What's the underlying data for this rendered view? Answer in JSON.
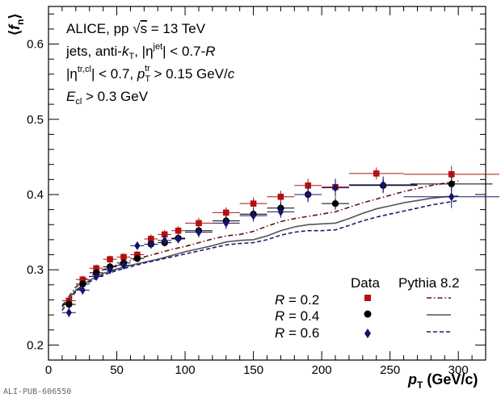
{
  "figure_id": "ALI-PUB-606550",
  "annotation": {
    "line1": {
      "pre": "ALICE, pp ",
      "sqrt": "√",
      "s": "s",
      "post": " = 13 TeV"
    },
    "line2": {
      "pre": "jets, anti-",
      "k": "k",
      "ksub": "T",
      "mid": ", |η",
      "etasup": "jet",
      "post": "| < 0.7-",
      "R": "R"
    },
    "line3": {
      "pre": "|η",
      "etasup": "tr,cl",
      "mid": "| < 0.7, ",
      "p": "p",
      "psub": "T",
      "psup": "tr",
      "post": " > 0.15 GeV/",
      "c": "c"
    },
    "line4": {
      "E": "E",
      "Esub": "cl",
      "post": " > 0.3 GeV"
    }
  },
  "legend": {
    "header_data": "Data",
    "header_mc": "Pythia 8.2",
    "entries": [
      {
        "R": "R",
        "eq": " = 0.2"
      },
      {
        "R": "R",
        "eq": " = 0.4"
      },
      {
        "R": "R",
        "eq": " = 0.6"
      }
    ]
  },
  "chart_data": {
    "type": "scatter",
    "xlabel": {
      "p": "p",
      "sub": "T",
      "unit": " (GeV/c)"
    },
    "ylabel": {
      "pre": "⟨",
      "f": "f",
      "sub": "n",
      "post": "⟩"
    },
    "xlim": [
      0,
      320
    ],
    "ylim": [
      0.18,
      0.65
    ],
    "xticks": [
      0,
      50,
      100,
      150,
      200,
      250,
      300
    ],
    "yticks": [
      0.2,
      0.3,
      0.4,
      0.5,
      0.6
    ],
    "grid": false,
    "legend_position": "bottom-right",
    "series": [
      {
        "name": "R = 0.2",
        "kind": "data",
        "marker": "square",
        "color": "#b31010",
        "points": [
          {
            "x": 15,
            "y": 0.259,
            "xerr": 5,
            "yerr": 0.006
          },
          {
            "x": 25,
            "y": 0.287,
            "xerr": 5,
            "yerr": 0.005
          },
          {
            "x": 35,
            "y": 0.302,
            "xerr": 5,
            "yerr": 0.005
          },
          {
            "x": 45,
            "y": 0.314,
            "xerr": 5,
            "yerr": 0.005
          },
          {
            "x": 55,
            "y": 0.317,
            "xerr": 5,
            "yerr": 0.005
          },
          {
            "x": 65,
            "y": 0.32,
            "xerr": 5,
            "yerr": 0.005
          },
          {
            "x": 75,
            "y": 0.341,
            "xerr": 5,
            "yerr": 0.006
          },
          {
            "x": 85,
            "y": 0.347,
            "xerr": 5,
            "yerr": 0.006
          },
          {
            "x": 95,
            "y": 0.352,
            "xerr": 5,
            "yerr": 0.006
          },
          {
            "x": 110,
            "y": 0.362,
            "xerr": 10,
            "yerr": 0.007
          },
          {
            "x": 130,
            "y": 0.376,
            "xerr": 10,
            "yerr": 0.007
          },
          {
            "x": 150,
            "y": 0.388,
            "xerr": 10,
            "yerr": 0.008
          },
          {
            "x": 170,
            "y": 0.397,
            "xerr": 10,
            "yerr": 0.008
          },
          {
            "x": 190,
            "y": 0.412,
            "xerr": 10,
            "yerr": 0.009
          },
          {
            "x": 210,
            "y": 0.41,
            "xerr": 10,
            "yerr": 0.01
          },
          {
            "x": 240,
            "y": 0.428,
            "xerr": 20,
            "yerr": 0.008
          },
          {
            "x": 295,
            "y": 0.427,
            "xerr": 35,
            "yerr": 0.011
          }
        ]
      },
      {
        "name": "R = 0.4",
        "kind": "data",
        "marker": "circle",
        "color": "#000000",
        "points": [
          {
            "x": 15,
            "y": 0.254,
            "xerr": 5,
            "yerr": 0.006
          },
          {
            "x": 25,
            "y": 0.281,
            "xerr": 5,
            "yerr": 0.005
          },
          {
            "x": 35,
            "y": 0.296,
            "xerr": 5,
            "yerr": 0.005
          },
          {
            "x": 45,
            "y": 0.304,
            "xerr": 5,
            "yerr": 0.005
          },
          {
            "x": 55,
            "y": 0.309,
            "xerr": 5,
            "yerr": 0.005
          },
          {
            "x": 65,
            "y": 0.315,
            "xerr": 5,
            "yerr": 0.005
          },
          {
            "x": 75,
            "y": 0.334,
            "xerr": 5,
            "yerr": 0.005
          },
          {
            "x": 85,
            "y": 0.336,
            "xerr": 5,
            "yerr": 0.005
          },
          {
            "x": 95,
            "y": 0.342,
            "xerr": 5,
            "yerr": 0.006
          },
          {
            "x": 110,
            "y": 0.352,
            "xerr": 10,
            "yerr": 0.006
          },
          {
            "x": 130,
            "y": 0.365,
            "xerr": 10,
            "yerr": 0.007
          },
          {
            "x": 150,
            "y": 0.374,
            "xerr": 10,
            "yerr": 0.007
          },
          {
            "x": 170,
            "y": 0.382,
            "xerr": 10,
            "yerr": 0.008
          },
          {
            "x": 190,
            "y": 0.4,
            "xerr": 10,
            "yerr": 0.009
          },
          {
            "x": 210,
            "y": 0.388,
            "xerr": 10,
            "yerr": 0.008
          },
          {
            "x": 245,
            "y": 0.412,
            "xerr": 25,
            "yerr": 0.009
          },
          {
            "x": 295,
            "y": 0.414,
            "xerr": 30,
            "yerr": 0.01
          }
        ]
      },
      {
        "name": "R = 0.6",
        "kind": "data",
        "marker": "diamond",
        "color": "#13136e",
        "points": [
          {
            "x": 15,
            "y": 0.243,
            "xerr": 5,
            "yerr": 0.006
          },
          {
            "x": 25,
            "y": 0.273,
            "xerr": 5,
            "yerr": 0.006
          },
          {
            "x": 35,
            "y": 0.291,
            "xerr": 5,
            "yerr": 0.005
          },
          {
            "x": 45,
            "y": 0.3,
            "xerr": 5,
            "yerr": 0.005
          },
          {
            "x": 55,
            "y": 0.306,
            "xerr": 5,
            "yerr": 0.005
          },
          {
            "x": 65,
            "y": 0.332,
            "xerr": 5,
            "yerr": 0.005
          },
          {
            "x": 75,
            "y": 0.334,
            "xerr": 5,
            "yerr": 0.006
          },
          {
            "x": 85,
            "y": 0.339,
            "xerr": 5,
            "yerr": 0.006
          },
          {
            "x": 95,
            "y": 0.341,
            "xerr": 5,
            "yerr": 0.006
          },
          {
            "x": 110,
            "y": 0.35,
            "xerr": 10,
            "yerr": 0.007
          },
          {
            "x": 130,
            "y": 0.362,
            "xerr": 10,
            "yerr": 0.008
          },
          {
            "x": 150,
            "y": 0.372,
            "xerr": 10,
            "yerr": 0.008
          },
          {
            "x": 170,
            "y": 0.377,
            "xerr": 10,
            "yerr": 0.008
          },
          {
            "x": 190,
            "y": 0.4,
            "xerr": 10,
            "yerr": 0.01
          },
          {
            "x": 210,
            "y": 0.409,
            "xerr": 10,
            "yerr": 0.012
          },
          {
            "x": 245,
            "y": 0.413,
            "xerr": 25,
            "yerr": 0.011
          },
          {
            "x": 295,
            "y": 0.397,
            "xerr": 35,
            "yerr": 0.015
          }
        ]
      },
      {
        "name": "Pythia 8.2, R = 0.2",
        "kind": "model",
        "style": "dash-dot",
        "color": "#6b0f0f",
        "x": [
          10,
          20,
          30,
          40,
          50,
          60,
          70,
          80,
          90,
          100,
          110,
          120,
          130,
          140,
          150,
          160,
          170,
          180,
          190,
          200,
          210,
          220,
          230,
          240,
          250,
          260,
          270,
          280,
          290,
          300
        ],
        "y": [
          0.252,
          0.277,
          0.291,
          0.3,
          0.306,
          0.312,
          0.317,
          0.322,
          0.327,
          0.331,
          0.336,
          0.341,
          0.345,
          0.347,
          0.351,
          0.358,
          0.364,
          0.368,
          0.371,
          0.374,
          0.377,
          0.383,
          0.389,
          0.394,
          0.399,
          0.404,
          0.408,
          0.412,
          0.415,
          0.418
        ]
      },
      {
        "name": "Pythia 8.2, R = 0.4",
        "kind": "model",
        "style": "solid",
        "color": "#555555",
        "x": [
          10,
          20,
          30,
          40,
          50,
          60,
          70,
          80,
          90,
          100,
          110,
          120,
          130,
          140,
          150,
          160,
          170,
          180,
          190,
          200,
          210,
          220,
          230,
          240,
          250,
          260,
          270,
          280,
          290,
          300
        ],
        "y": [
          0.25,
          0.273,
          0.286,
          0.295,
          0.301,
          0.306,
          0.31,
          0.314,
          0.319,
          0.324,
          0.328,
          0.332,
          0.337,
          0.339,
          0.34,
          0.345,
          0.352,
          0.357,
          0.36,
          0.361,
          0.362,
          0.368,
          0.375,
          0.381,
          0.385,
          0.389,
          0.392,
          0.395,
          0.397,
          0.398
        ]
      },
      {
        "name": "Pythia 8.2, R = 0.6",
        "kind": "model",
        "style": "dashed",
        "color": "#1a1a7a",
        "x": [
          10,
          20,
          30,
          40,
          50,
          60,
          70,
          80,
          90,
          100,
          110,
          120,
          130,
          140,
          150,
          160,
          170,
          180,
          190,
          200,
          210,
          220,
          230,
          240,
          250,
          260,
          270,
          280,
          290,
          300
        ],
        "y": [
          0.246,
          0.271,
          0.284,
          0.293,
          0.299,
          0.304,
          0.309,
          0.313,
          0.317,
          0.321,
          0.325,
          0.329,
          0.333,
          0.335,
          0.336,
          0.34,
          0.346,
          0.35,
          0.352,
          0.352,
          0.353,
          0.359,
          0.365,
          0.37,
          0.374,
          0.378,
          0.382,
          0.386,
          0.389,
          0.392
        ]
      }
    ]
  }
}
